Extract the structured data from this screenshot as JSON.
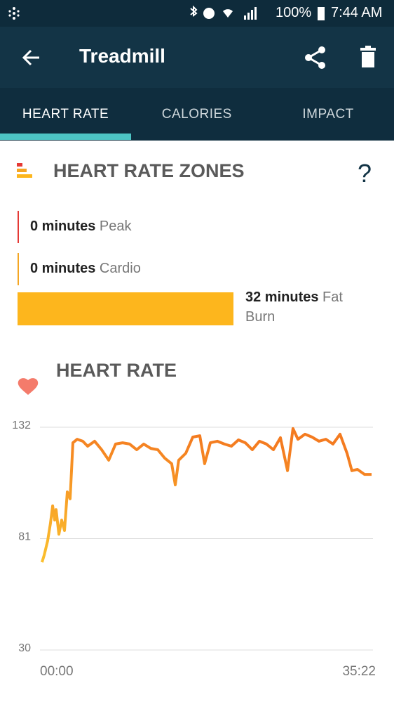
{
  "status_bar": {
    "battery": "100%",
    "time": "7:44 AM"
  },
  "header": {
    "title": "Treadmill"
  },
  "tabs": [
    {
      "label": "HEART RATE",
      "active": true
    },
    {
      "label": "CALORIES",
      "active": false
    },
    {
      "label": "IMPACT",
      "active": false
    }
  ],
  "zones": {
    "title": "HEART RATE ZONES",
    "help": "?",
    "items": [
      {
        "amount": "0 minutes",
        "name": "Peak",
        "color": "#e53935"
      },
      {
        "amount": "0 minutes",
        "name": "Cardio",
        "color": "#f5a623"
      },
      {
        "amount": "32 minutes",
        "name": "Fat Burn",
        "color": "#fdb61d"
      }
    ]
  },
  "chart_data": {
    "type": "line",
    "title": "HEART RATE",
    "x": [
      13,
      27,
      49,
      67,
      81,
      94,
      103,
      121,
      139,
      157,
      175,
      193,
      211,
      238,
      274,
      305,
      350,
      395,
      440,
      484,
      529,
      574,
      619,
      664,
      709,
      754,
      799,
      843,
      866,
      888,
      933,
      978,
      1023,
      1054,
      1090,
      1135,
      1180,
      1225,
      1270,
      1314,
      1359,
      1404,
      1449,
      1494,
      1539,
      1584,
      1619,
      1651,
      1696,
      1741,
      1785,
      1830,
      1875,
      1920,
      1965,
      1996,
      2032,
      2077,
      2122
    ],
    "series": [
      {
        "name": "Heart rate",
        "color": "#f47b20",
        "start_color": "#fbc02d",
        "values": [
          70.2,
          73.4,
          79.9,
          87.9,
          96,
          89.5,
          94.3,
          83,
          89.5,
          84.7,
          102.4,
          99.2,
          124.9,
          126.5,
          125.6,
          123.3,
          125.6,
          121.7,
          116.9,
          124.3,
          124.9,
          124.3,
          121.7,
          124.3,
          122.3,
          121.7,
          117.8,
          115.3,
          105.6,
          116.9,
          120.1,
          127.5,
          128.1,
          115.3,
          124.9,
          125.6,
          124.3,
          123.3,
          126.2,
          124.9,
          121.7,
          125.6,
          124.3,
          121.7,
          127.2,
          112.1,
          131.4,
          126.5,
          128.8,
          127.5,
          125.6,
          126.5,
          124.3,
          128.8,
          120.1,
          112.1,
          112.7,
          110.4,
          110.4
        ]
      }
    ],
    "xlim": [
      0,
      2122
    ],
    "xticks": [
      {
        "value": 0,
        "label": "00:00"
      },
      {
        "value": 2122,
        "label": "35:22"
      }
    ],
    "ylim": [
      30,
      132
    ],
    "yticks": [
      30,
      81,
      132
    ],
    "grid": true
  }
}
